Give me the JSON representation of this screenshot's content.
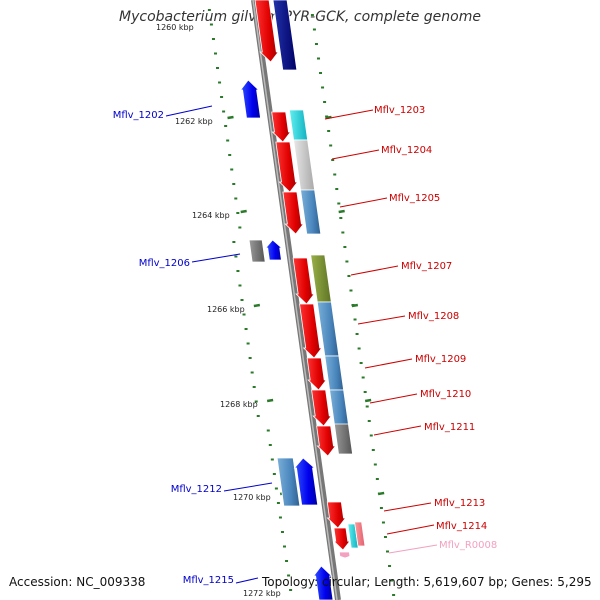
{
  "header": {
    "title": "Mycobacterium gilvum PYR-GCK, complete genome"
  },
  "footer": {
    "accession": "Accession: NC_009338",
    "summary": "Topology: circular; Length: 5,619,607 bp; Genes: 5,295"
  },
  "colors": {
    "backbone": "#8a8a8a",
    "forward_label": "#cc0000",
    "reverse_label": "#0000cc",
    "rna_label": "#f4a0c0",
    "tick": "#2a7a2a"
  },
  "scale_labels": [
    "1260 kbp",
    "1262 kbp",
    "1264 kbp",
    "1266 kbp",
    "1268 kbp",
    "1270 kbp",
    "1272 kbp"
  ],
  "gene_labels": [
    {
      "text": "Mflv_1202",
      "strand": "reverse"
    },
    {
      "text": "Mflv_1203",
      "strand": "forward"
    },
    {
      "text": "Mflv_1204",
      "strand": "forward"
    },
    {
      "text": "Mflv_1205",
      "strand": "forward"
    },
    {
      "text": "Mflv_1206",
      "strand": "reverse"
    },
    {
      "text": "Mflv_1207",
      "strand": "forward"
    },
    {
      "text": "Mflv_1208",
      "strand": "forward"
    },
    {
      "text": "Mflv_1209",
      "strand": "forward"
    },
    {
      "text": "Mflv_1210",
      "strand": "forward"
    },
    {
      "text": "Mflv_1211",
      "strand": "forward"
    },
    {
      "text": "Mflv_1212",
      "strand": "reverse"
    },
    {
      "text": "Mflv_1213",
      "strand": "forward"
    },
    {
      "text": "Mflv_1214",
      "strand": "forward"
    },
    {
      "text": "Mflv_R0008",
      "strand": "rna"
    },
    {
      "text": "Mflv_1215",
      "strand": "reverse"
    }
  ]
}
